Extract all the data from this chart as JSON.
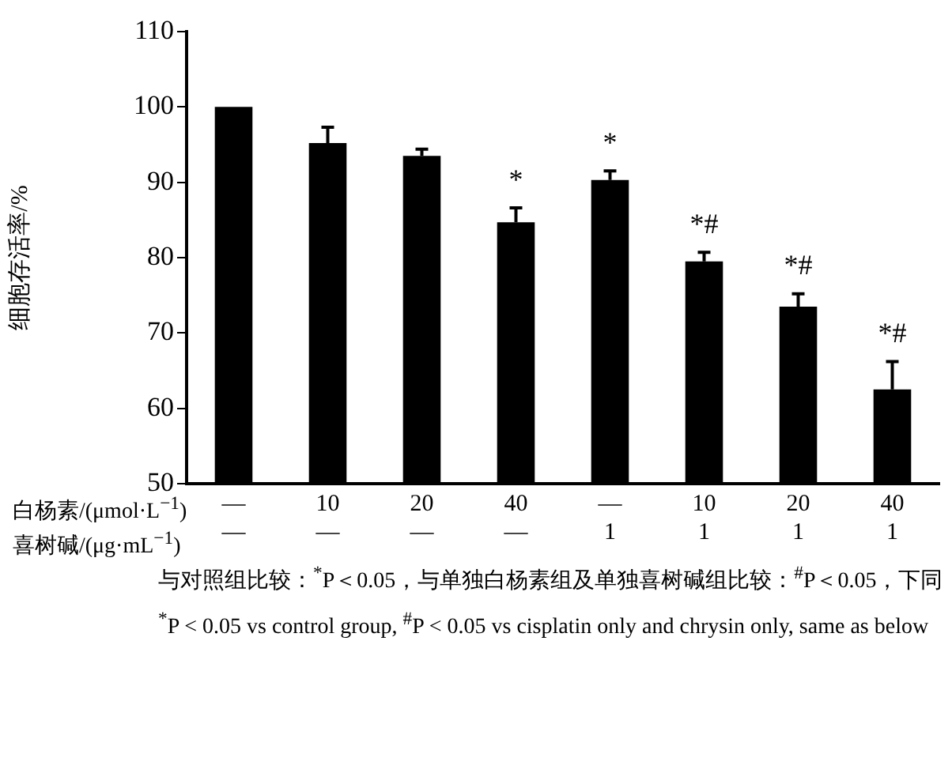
{
  "chart_data": {
    "type": "bar",
    "ylabel": "细胞存活率/%",
    "categories": [
      "—\n—",
      "10\n—",
      "20\n—",
      "40\n—",
      "—\n1",
      "10\n1",
      "20\n1",
      "40\n1"
    ],
    "values": [
      100,
      95.2,
      93.5,
      84.7,
      90.3,
      79.5,
      73.5,
      62.5
    ],
    "errors": [
      null,
      [
        95.2,
        97.3
      ],
      [
        93.5,
        94.4
      ],
      [
        84.7,
        86.6
      ],
      [
        90.3,
        91.5
      ],
      [
        79.5,
        80.7
      ],
      [
        73.5,
        75.2
      ],
      [
        62.5,
        66.2
      ]
    ],
    "color": "#000000",
    "ylim": [
      50,
      110
    ],
    "yticks": [
      50,
      60,
      70,
      80,
      90,
      100,
      110
    ],
    "grid": false,
    "legend": false,
    "xlabel": "白杨素/(μmol·L$^{−1}$)\n喜树碱/(μg·mL$^{−1}$)",
    "annotations": [
      {
        "text": "*",
        "x": "40\n—",
        "y": 86.6
      },
      {
        "text": "*",
        "x": "—\n1",
        "y": 91.5
      },
      {
        "text": "*#",
        "x": "10\n1",
        "y": 80.7
      },
      {
        "text": "*#",
        "x": "20\n1",
        "y": 75.2
      },
      {
        "text": "*#",
        "x": "40\n1",
        "y": 66.2
      },
      "与对照组比较：$^{*}$P＜0.05，与单独白杨素组及单独喜树碱组比较：$^{#}$P＜0.05，下同",
      "$^{*}$P < 0.05 vs control group, $^{#}$P < 0.05 vs cisplatin only and chrysin only, same as below"
    ]
  }
}
